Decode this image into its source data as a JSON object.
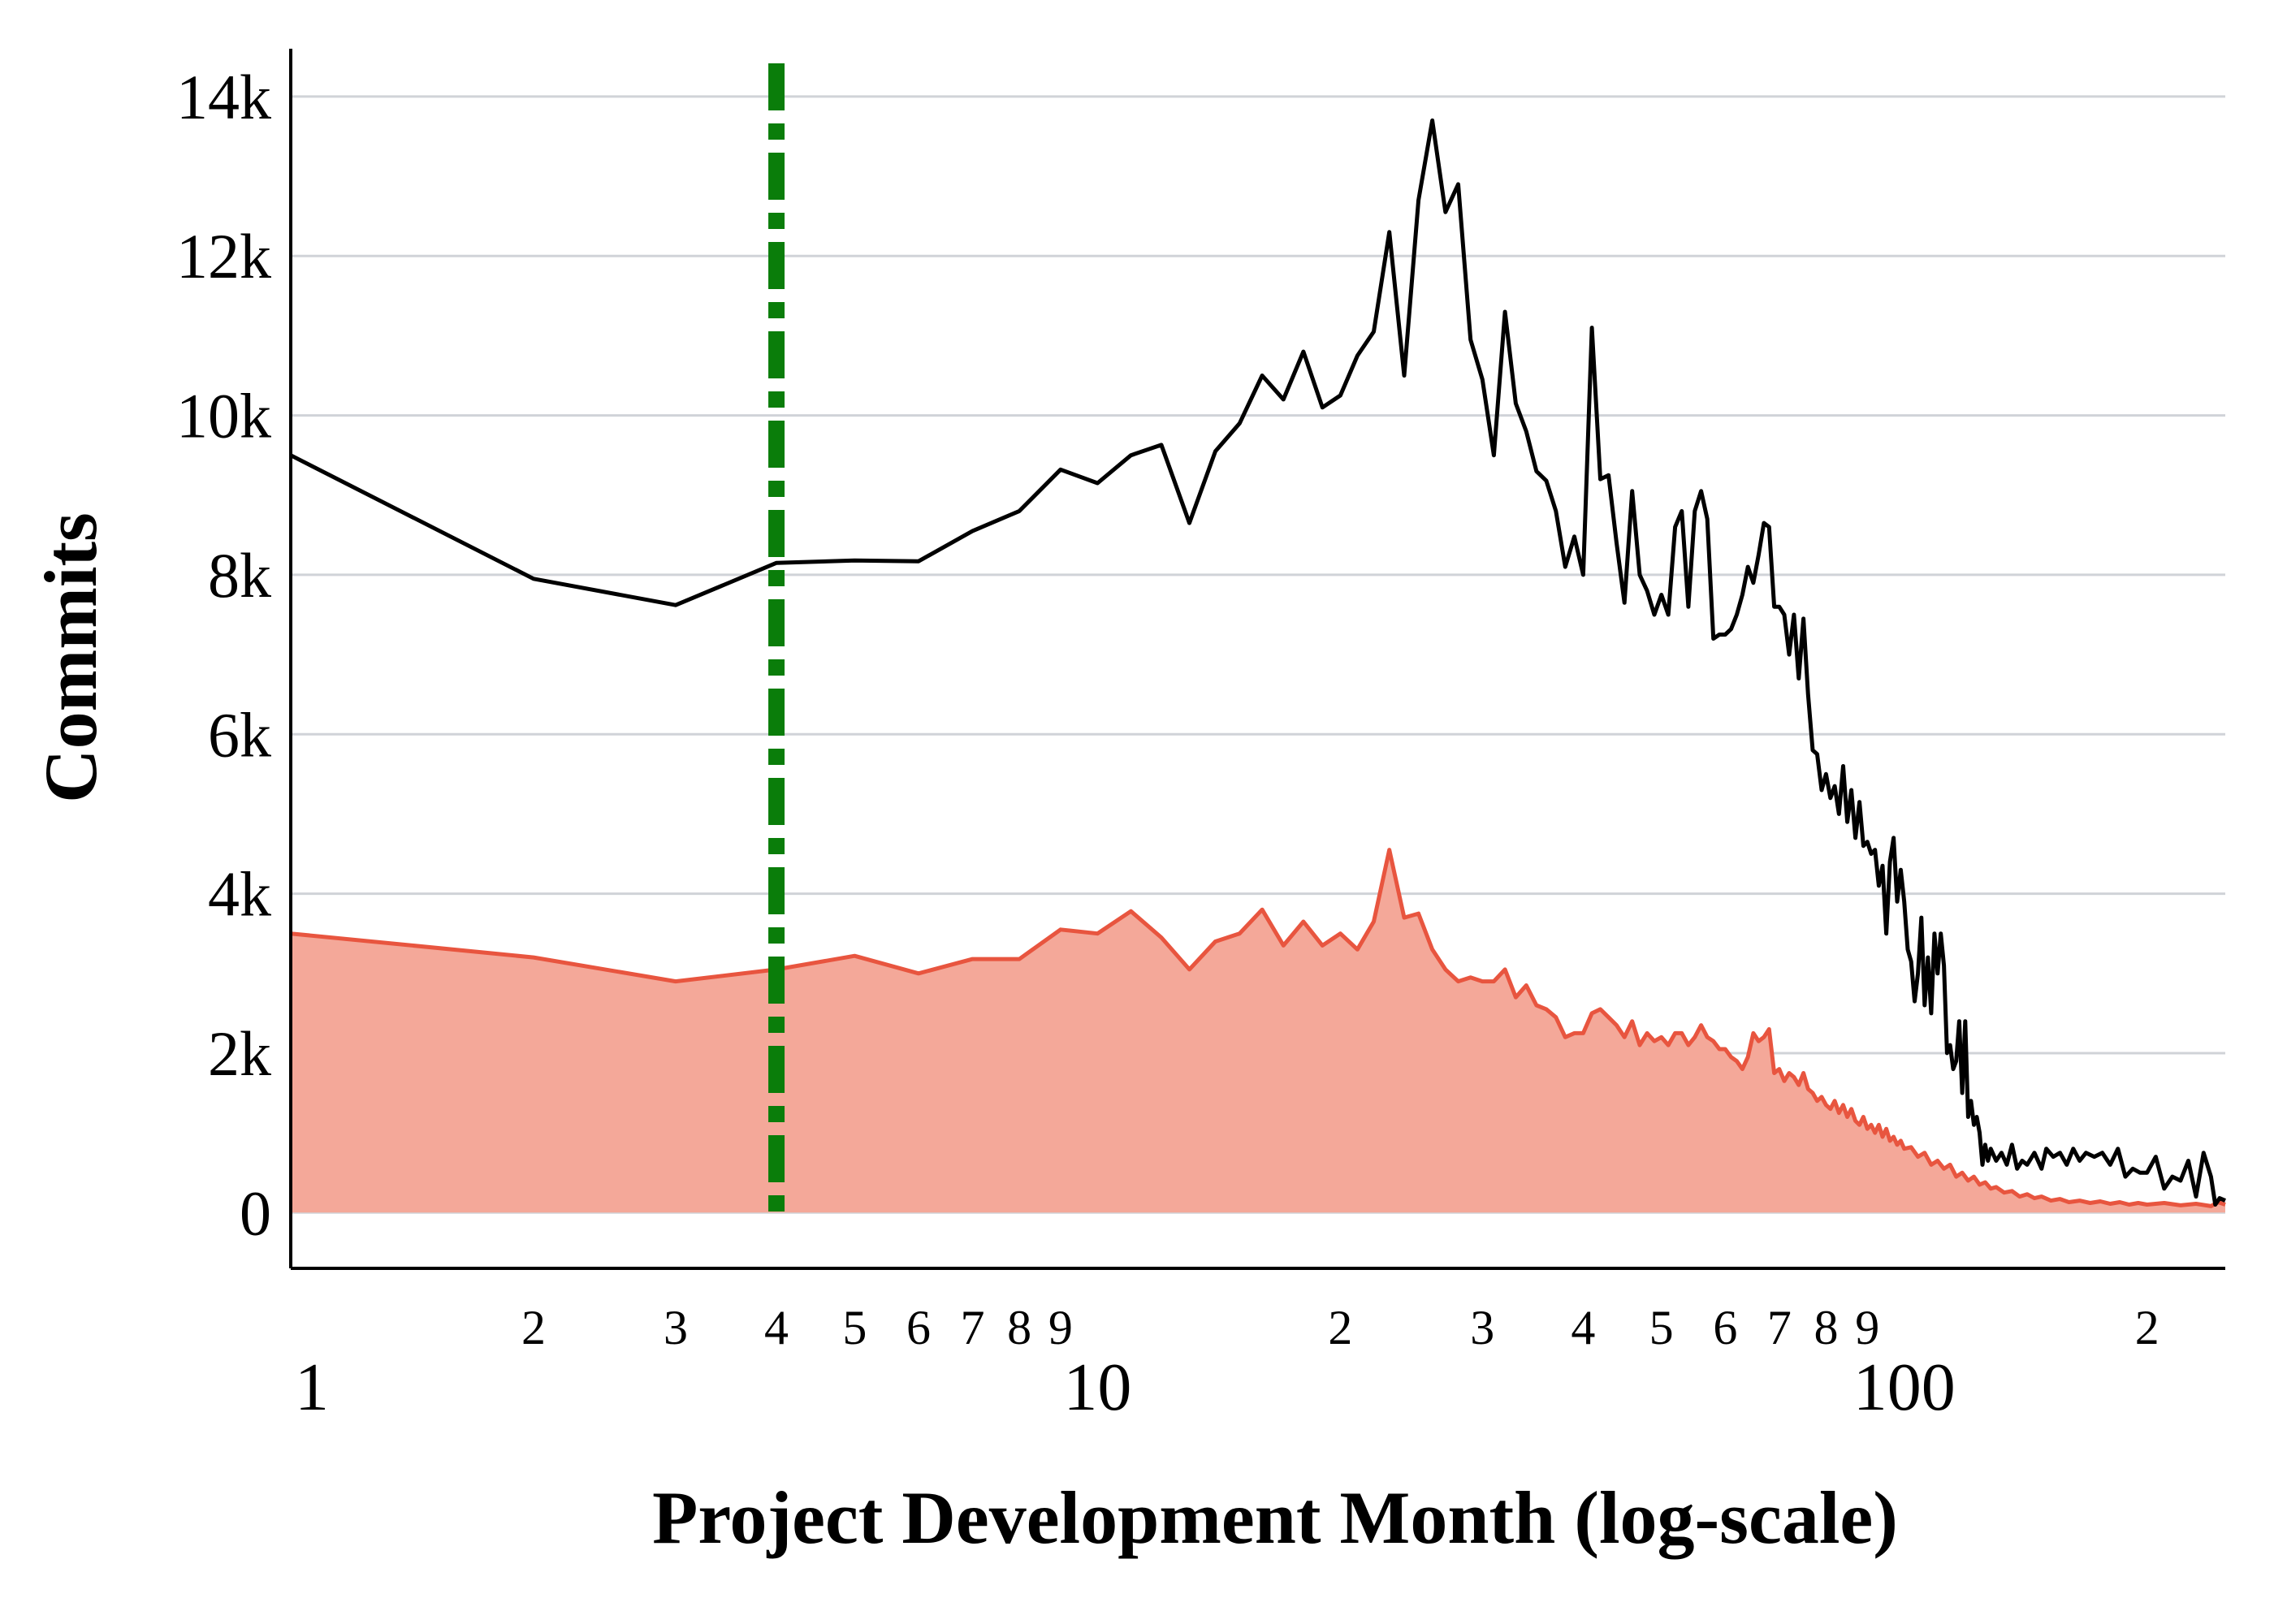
{
  "chart_data": {
    "type": "line",
    "title": "",
    "xlabel": "Project Development Month (log-scale)",
    "ylabel": "Commits",
    "x_scale": "log",
    "xlim": [
      1,
      250
    ],
    "ylim": [
      -700,
      14600
    ],
    "y_ticks": [
      0,
      2000,
      4000,
      6000,
      8000,
      10000,
      12000,
      14000
    ],
    "y_tick_labels": [
      "0",
      "2k",
      "4k",
      "6k",
      "8k",
      "10k",
      "12k",
      "14k"
    ],
    "x_major_ticks": [
      1,
      10,
      100
    ],
    "x_major_labels": [
      "1",
      "10",
      "100"
    ],
    "x_minor_ticks": [
      2,
      3,
      4,
      5,
      6,
      7,
      8,
      9,
      20,
      30,
      40,
      50,
      60,
      70,
      80,
      90,
      200
    ],
    "x_minor_labels": [
      "2",
      "3",
      "4",
      "5",
      "6",
      "7",
      "8",
      "9",
      "2",
      "3",
      "4",
      "5",
      "6",
      "7",
      "8",
      "9",
      "2"
    ],
    "grid": "horizontal",
    "colors": {
      "total_line": "#000000",
      "area_fill": "#f4a899",
      "area_line": "#e8553f",
      "marker": "#0a7d0a",
      "grid": "#d0d3d8",
      "axis": "#000000"
    },
    "marker_line": {
      "x": 4,
      "style": "dash-dot"
    },
    "series": [
      {
        "name": "total_commits",
        "style": "line",
        "points": [
          [
            1,
            9500
          ],
          [
            2,
            7950
          ],
          [
            3,
            7620
          ],
          [
            4,
            8150
          ],
          [
            5,
            8180
          ],
          [
            6,
            8170
          ],
          [
            7,
            8550
          ],
          [
            8,
            8800
          ],
          [
            9,
            9320
          ],
          [
            10,
            9150
          ],
          [
            11,
            9500
          ],
          [
            12,
            9630
          ],
          [
            13,
            8650
          ],
          [
            14,
            9550
          ],
          [
            15,
            9900
          ],
          [
            16,
            10500
          ],
          [
            17,
            10200
          ],
          [
            18,
            10800
          ],
          [
            19,
            10100
          ],
          [
            20,
            10250
          ],
          [
            21,
            10750
          ],
          [
            22,
            11050
          ],
          [
            23,
            12300
          ],
          [
            24,
            10500
          ],
          [
            25,
            12700
          ],
          [
            26,
            13700
          ],
          [
            27,
            12550
          ],
          [
            28,
            12900
          ],
          [
            29,
            10950
          ],
          [
            30,
            10450
          ],
          [
            31,
            9500
          ],
          [
            32,
            11300
          ],
          [
            33,
            10150
          ],
          [
            34,
            9800
          ],
          [
            35,
            9300
          ],
          [
            36,
            9180
          ],
          [
            37,
            8800
          ],
          [
            38,
            8100
          ],
          [
            39,
            8480
          ],
          [
            40,
            8000
          ],
          [
            41,
            11100
          ],
          [
            42,
            9200
          ],
          [
            43,
            9250
          ],
          [
            44,
            8400
          ],
          [
            45,
            7650
          ],
          [
            46,
            9050
          ],
          [
            47,
            8000
          ],
          [
            48,
            7800
          ],
          [
            49,
            7500
          ],
          [
            50,
            7750
          ],
          [
            51,
            7500
          ],
          [
            52,
            8600
          ],
          [
            53,
            8800
          ],
          [
            54,
            7600
          ],
          [
            55,
            8800
          ],
          [
            56,
            9050
          ],
          [
            57,
            8700
          ],
          [
            58,
            7200
          ],
          [
            59,
            7250
          ],
          [
            60,
            7250
          ],
          [
            61,
            7320
          ],
          [
            62,
            7500
          ],
          [
            63,
            7750
          ],
          [
            64,
            8100
          ],
          [
            65,
            7900
          ],
          [
            66,
            8250
          ],
          [
            67,
            8650
          ],
          [
            68,
            8600
          ],
          [
            69,
            7600
          ],
          [
            70,
            7600
          ],
          [
            71,
            7500
          ],
          [
            72,
            7000
          ],
          [
            73,
            7500
          ],
          [
            74,
            6700
          ],
          [
            75,
            7450
          ],
          [
            76,
            6500
          ],
          [
            77,
            5800
          ],
          [
            78,
            5750
          ],
          [
            79,
            5300
          ],
          [
            80,
            5500
          ],
          [
            81,
            5200
          ],
          [
            82,
            5350
          ],
          [
            83,
            5000
          ],
          [
            84,
            5600
          ],
          [
            85,
            4900
          ],
          [
            86,
            5300
          ],
          [
            87,
            4700
          ],
          [
            88,
            5150
          ],
          [
            89,
            4600
          ],
          [
            90,
            4650
          ],
          [
            91,
            4500
          ],
          [
            92,
            4550
          ],
          [
            93,
            4100
          ],
          [
            94,
            4350
          ],
          [
            95,
            3500
          ],
          [
            96,
            4400
          ],
          [
            97,
            4700
          ],
          [
            98,
            3900
          ],
          [
            99,
            4300
          ],
          [
            100,
            3900
          ],
          [
            101,
            3300
          ],
          [
            102,
            3150
          ],
          [
            103,
            2650
          ],
          [
            104,
            3000
          ],
          [
            105,
            3700
          ],
          [
            106,
            2600
          ],
          [
            107,
            3200
          ],
          [
            108,
            2500
          ],
          [
            109,
            3500
          ],
          [
            110,
            3000
          ],
          [
            111,
            3500
          ],
          [
            112,
            3100
          ],
          [
            113,
            2000
          ],
          [
            114,
            2100
          ],
          [
            115,
            1800
          ],
          [
            116,
            1900
          ],
          [
            117,
            2400
          ],
          [
            118,
            1500
          ],
          [
            119,
            2400
          ],
          [
            120,
            1200
          ],
          [
            121,
            1400
          ],
          [
            122,
            1100
          ],
          [
            123,
            1200
          ],
          [
            124,
            1000
          ],
          [
            125,
            600
          ],
          [
            126,
            850
          ],
          [
            127,
            650
          ],
          [
            128,
            800
          ],
          [
            130,
            650
          ],
          [
            132,
            750
          ],
          [
            134,
            600
          ],
          [
            136,
            850
          ],
          [
            138,
            550
          ],
          [
            140,
            650
          ],
          [
            142,
            600
          ],
          [
            145,
            750
          ],
          [
            148,
            550
          ],
          [
            150,
            800
          ],
          [
            153,
            700
          ],
          [
            156,
            750
          ],
          [
            159,
            600
          ],
          [
            162,
            800
          ],
          [
            165,
            650
          ],
          [
            168,
            750
          ],
          [
            172,
            700
          ],
          [
            176,
            750
          ],
          [
            180,
            600
          ],
          [
            184,
            800
          ],
          [
            188,
            450
          ],
          [
            192,
            550
          ],
          [
            196,
            500
          ],
          [
            200,
            500
          ],
          [
            205,
            700
          ],
          [
            210,
            300
          ],
          [
            215,
            450
          ],
          [
            220,
            400
          ],
          [
            225,
            650
          ],
          [
            230,
            200
          ],
          [
            235,
            750
          ],
          [
            240,
            450
          ],
          [
            243,
            100
          ],
          [
            246,
            180
          ],
          [
            250,
            150
          ]
        ]
      },
      {
        "name": "subset_commits",
        "style": "area",
        "points": [
          [
            1,
            3500
          ],
          [
            2,
            3200
          ],
          [
            3,
            2900
          ],
          [
            4,
            3050
          ],
          [
            5,
            3220
          ],
          [
            6,
            3000
          ],
          [
            7,
            3180
          ],
          [
            8,
            3180
          ],
          [
            9,
            3550
          ],
          [
            10,
            3500
          ],
          [
            11,
            3780
          ],
          [
            12,
            3450
          ],
          [
            13,
            3050
          ],
          [
            14,
            3400
          ],
          [
            15,
            3500
          ],
          [
            16,
            3800
          ],
          [
            17,
            3350
          ],
          [
            18,
            3650
          ],
          [
            19,
            3350
          ],
          [
            20,
            3500
          ],
          [
            21,
            3300
          ],
          [
            22,
            3650
          ],
          [
            23,
            4550
          ],
          [
            24,
            3700
          ],
          [
            25,
            3750
          ],
          [
            26,
            3300
          ],
          [
            27,
            3050
          ],
          [
            28,
            2900
          ],
          [
            29,
            2950
          ],
          [
            30,
            2900
          ],
          [
            31,
            2900
          ],
          [
            32,
            3050
          ],
          [
            33,
            2700
          ],
          [
            34,
            2850
          ],
          [
            35,
            2600
          ],
          [
            36,
            2550
          ],
          [
            37,
            2450
          ],
          [
            38,
            2200
          ],
          [
            39,
            2250
          ],
          [
            40,
            2250
          ],
          [
            41,
            2500
          ],
          [
            42,
            2550
          ],
          [
            43,
            2450
          ],
          [
            44,
            2350
          ],
          [
            45,
            2200
          ],
          [
            46,
            2400
          ],
          [
            47,
            2100
          ],
          [
            48,
            2250
          ],
          [
            49,
            2150
          ],
          [
            50,
            2200
          ],
          [
            51,
            2100
          ],
          [
            52,
            2250
          ],
          [
            53,
            2250
          ],
          [
            54,
            2100
          ],
          [
            55,
            2200
          ],
          [
            56,
            2350
          ],
          [
            57,
            2200
          ],
          [
            58,
            2150
          ],
          [
            59,
            2050
          ],
          [
            60,
            2050
          ],
          [
            61,
            1950
          ],
          [
            62,
            1900
          ],
          [
            63,
            1800
          ],
          [
            64,
            1950
          ],
          [
            65,
            2250
          ],
          [
            66,
            2150
          ],
          [
            67,
            2200
          ],
          [
            68,
            2300
          ],
          [
            69,
            1750
          ],
          [
            70,
            1800
          ],
          [
            71,
            1650
          ],
          [
            72,
            1750
          ],
          [
            73,
            1700
          ],
          [
            74,
            1600
          ],
          [
            75,
            1750
          ],
          [
            76,
            1550
          ],
          [
            77,
            1500
          ],
          [
            78,
            1400
          ],
          [
            79,
            1450
          ],
          [
            80,
            1350
          ],
          [
            81,
            1300
          ],
          [
            82,
            1400
          ],
          [
            83,
            1250
          ],
          [
            84,
            1350
          ],
          [
            85,
            1200
          ],
          [
            86,
            1300
          ],
          [
            87,
            1150
          ],
          [
            88,
            1100
          ],
          [
            89,
            1200
          ],
          [
            90,
            1050
          ],
          [
            91,
            1100
          ],
          [
            92,
            1000
          ],
          [
            93,
            1100
          ],
          [
            94,
            950
          ],
          [
            95,
            1050
          ],
          [
            96,
            900
          ],
          [
            97,
            950
          ],
          [
            98,
            850
          ],
          [
            99,
            900
          ],
          [
            100,
            800
          ],
          [
            102,
            820
          ],
          [
            104,
            700
          ],
          [
            106,
            750
          ],
          [
            108,
            600
          ],
          [
            110,
            650
          ],
          [
            112,
            550
          ],
          [
            114,
            600
          ],
          [
            116,
            450
          ],
          [
            118,
            500
          ],
          [
            120,
            400
          ],
          [
            122,
            450
          ],
          [
            124,
            350
          ],
          [
            126,
            380
          ],
          [
            128,
            300
          ],
          [
            130,
            320
          ],
          [
            133,
            250
          ],
          [
            136,
            270
          ],
          [
            139,
            200
          ],
          [
            142,
            230
          ],
          [
            145,
            180
          ],
          [
            148,
            200
          ],
          [
            152,
            150
          ],
          [
            156,
            170
          ],
          [
            160,
            130
          ],
          [
            165,
            150
          ],
          [
            170,
            120
          ],
          [
            175,
            140
          ],
          [
            180,
            110
          ],
          [
            185,
            130
          ],
          [
            190,
            100
          ],
          [
            195,
            120
          ],
          [
            200,
            100
          ],
          [
            210,
            120
          ],
          [
            220,
            90
          ],
          [
            230,
            110
          ],
          [
            240,
            80
          ],
          [
            245,
            130
          ],
          [
            250,
            100
          ]
        ]
      }
    ]
  }
}
